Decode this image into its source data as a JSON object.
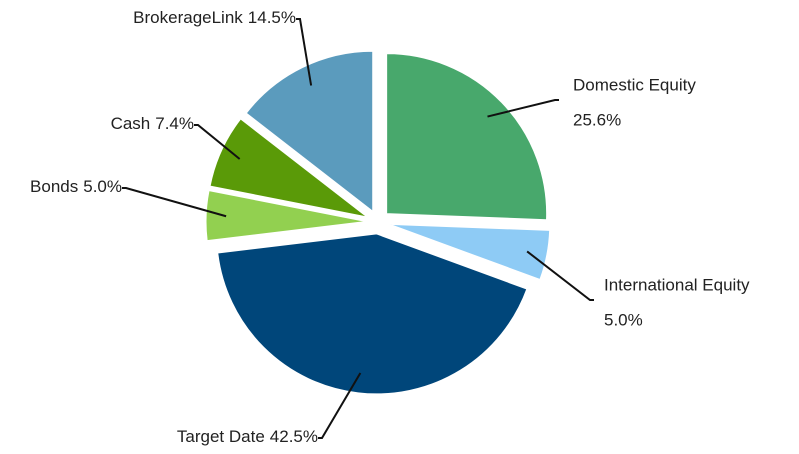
{
  "chart_data": {
    "type": "pie",
    "categories": [
      "Domestic Equity",
      "International Equity",
      "Target Date",
      "Bonds",
      "Cash",
      "BrokerageLink"
    ],
    "values": [
      25.6,
      5.0,
      42.5,
      5.0,
      7.4,
      14.5
    ],
    "value_labels": [
      "25.6%",
      "5.0%",
      "42.5%",
      "5.0%",
      "7.4%",
      "14.5%"
    ],
    "colors": [
      "#48a86c",
      "#8ecbf5",
      "#00467a",
      "#92d050",
      "#5a9a08",
      "#5b9bbd"
    ],
    "start_angle": 0,
    "direction": "clockwise",
    "exploded": true
  }
}
